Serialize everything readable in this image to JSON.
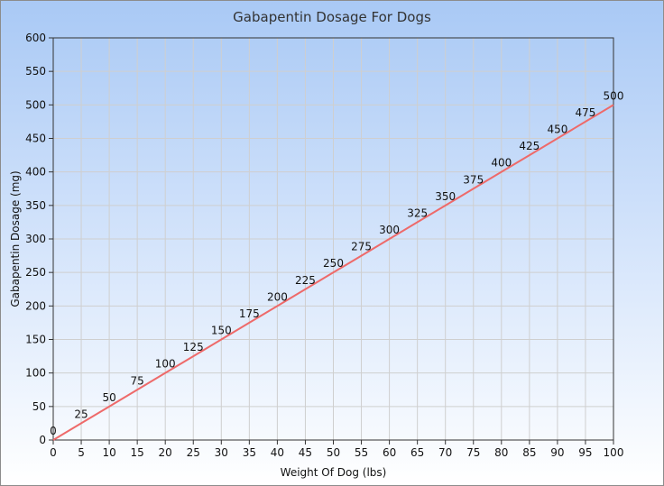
{
  "chart_data": {
    "type": "line",
    "title": "Gabapentin Dosage For Dogs",
    "xlabel": "Weight Of Dog (lbs)",
    "ylabel": "Gabapentin Dosage (mg)",
    "xlim": [
      0,
      100
    ],
    "ylim": [
      0,
      600
    ],
    "x_ticks": [
      0,
      5,
      10,
      15,
      20,
      25,
      30,
      35,
      40,
      45,
      50,
      55,
      60,
      65,
      70,
      75,
      80,
      85,
      90,
      95,
      100
    ],
    "y_ticks": [
      0,
      50,
      100,
      150,
      200,
      250,
      300,
      350,
      400,
      450,
      500,
      550,
      600
    ],
    "grid": true,
    "series": [
      {
        "color": "#ee6a6a",
        "x": [
          0,
          5,
          10,
          15,
          20,
          25,
          30,
          35,
          40,
          45,
          50,
          55,
          60,
          65,
          70,
          75,
          80,
          85,
          90,
          95,
          100
        ],
        "y": [
          0,
          25,
          50,
          75,
          100,
          125,
          150,
          175,
          200,
          225,
          250,
          275,
          300,
          325,
          350,
          375,
          400,
          425,
          450,
          475,
          500
        ],
        "labels": [
          "0",
          "25",
          "50",
          "75",
          "100",
          "125",
          "150",
          "175",
          "200",
          "225",
          "250",
          "275",
          "300",
          "325",
          "350",
          "375",
          "400",
          "425",
          "450",
          "475",
          "500"
        ]
      }
    ]
  }
}
